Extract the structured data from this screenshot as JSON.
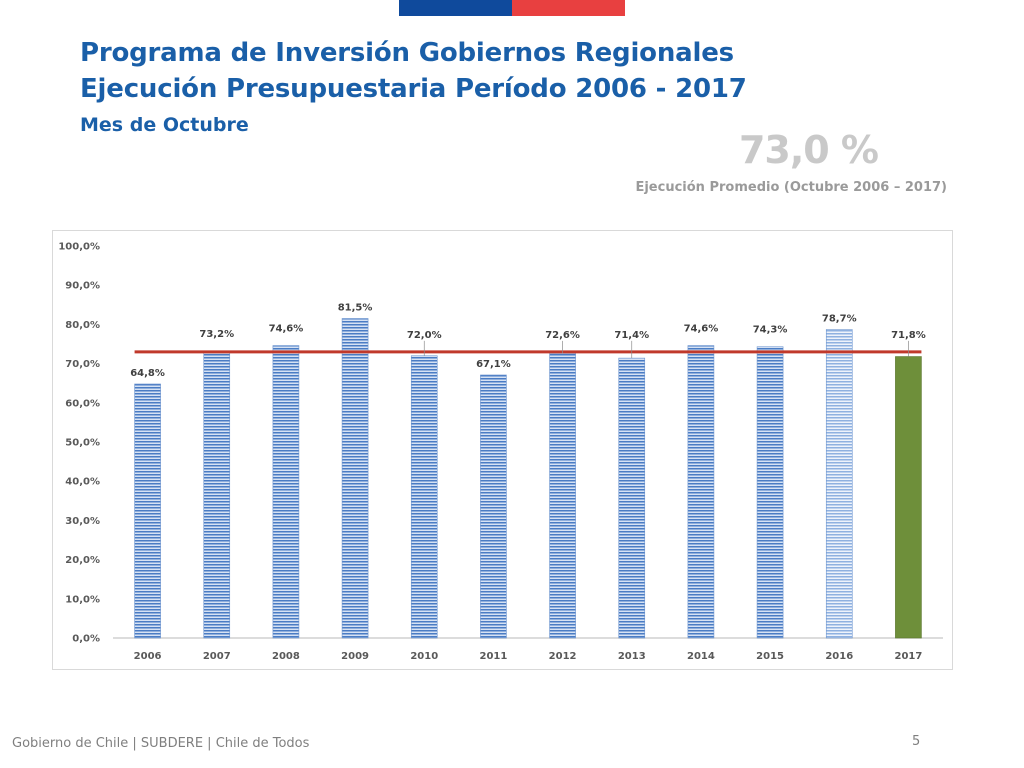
{
  "slide": {
    "title_line1": "Programa de Inversión Gobiernos Regionales",
    "title_line2": "Ejecución Presupuestaria Período 2006 - 2017",
    "subtitle": "Mes de Octubre",
    "kpi_value": "73,0 %",
    "kpi_caption": "Ejecución Promedio (Octubre 2006 – 2017)",
    "footer": "Gobierno de Chile | SUBDERE | Chile de Todos",
    "page_number": "5"
  },
  "colors": {
    "title": "#1a5fa8",
    "bar_stripe_dark": "#4a7cc4",
    "bar_stripe_light": "#d6e2f4",
    "bar_2016_dark": "#8fb1e0",
    "bar_2017": "#6e8f3a",
    "average_line": "#c0392b",
    "flag_blue": "#0f4a9c",
    "flag_red": "#e84040"
  },
  "chart_data": {
    "type": "bar",
    "categories": [
      "2006",
      "2007",
      "2008",
      "2009",
      "2010",
      "2011",
      "2012",
      "2013",
      "2014",
      "2015",
      "2016",
      "2017"
    ],
    "values": [
      64.8,
      73.2,
      74.6,
      81.5,
      72.0,
      67.1,
      72.6,
      71.4,
      74.6,
      74.3,
      78.7,
      71.8
    ],
    "value_labels": [
      "64,8%",
      "73,2%",
      "74,6%",
      "81,5%",
      "72,0%",
      "67,1%",
      "72,6%",
      "71,4%",
      "74,6%",
      "74,3%",
      "78,7%",
      "71,8%"
    ],
    "reference_line": {
      "value": 73.0
    },
    "y_ticks": [
      "0,0%",
      "10,0%",
      "20,0%",
      "30,0%",
      "40,0%",
      "50,0%",
      "60,0%",
      "70,0%",
      "80,0%",
      "90,0%",
      "100,0%"
    ],
    "ylim": [
      0,
      100
    ],
    "grid": false,
    "highlight": "2017"
  }
}
